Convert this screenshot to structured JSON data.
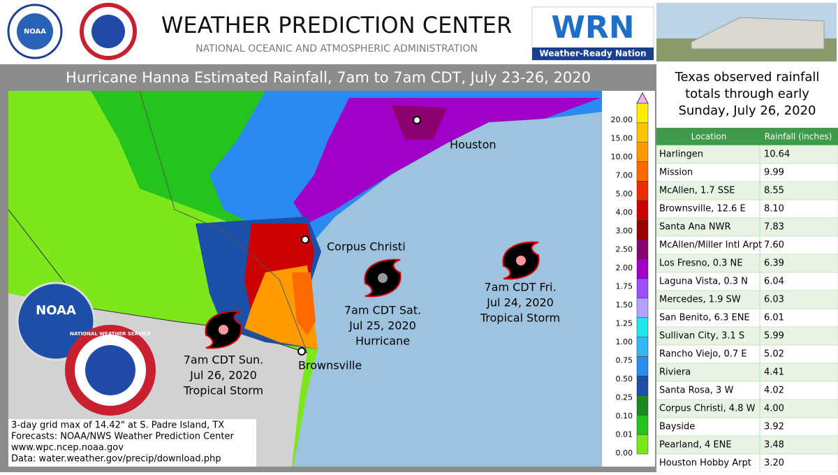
{
  "header": {
    "title": "WEATHER PREDICTION CENTER",
    "subtitle": "NATIONAL OCEANIC AND ATMOSPHERIC ADMINISTRATION",
    "noaa_logo": "NOAA",
    "wrn_logo": "WRN",
    "wrn_tagline": "Weather-Ready Nation"
  },
  "map": {
    "title": "Hurricane Hanna Estimated Rainfall, 7am to 7am CDT, July 23-26, 2020",
    "cities": [
      "Houston",
      "Corpus Christi",
      "Brownsville"
    ],
    "storms": [
      {
        "lines": [
          "7am CDT Fri.",
          "Jul 24, 2020",
          "Tropical Storm"
        ]
      },
      {
        "lines": [
          "7am CDT Sat.",
          "Jul 25, 2020",
          "Hurricane"
        ]
      },
      {
        "lines": [
          "7am CDT Sun.",
          "Jul 26, 2020",
          "Tropical Storm"
        ]
      }
    ],
    "footnote": [
      "3-day grid max of 14.42\" at S. Padre Island, TX",
      "Forecasts: NOAA/NWS Weather Prediction Center",
      "www.wpc.ncep.noaa.gov",
      "Data: water.weather.gov/precip/download.php"
    ],
    "legend": {
      "labels": [
        "20.00",
        "15.00",
        "10.00",
        "7.00",
        "5.00",
        "4.00",
        "3.00",
        "2.50",
        "2.00",
        "1.75",
        "1.50",
        "1.25",
        "1.00",
        "0.75",
        "0.50",
        "0.25",
        "0.10",
        "0.01",
        "0.00"
      ],
      "colors": [
        "#ffee00",
        "#ffc400",
        "#ff9a00",
        "#ff6a00",
        "#ee2a00",
        "#cc0000",
        "#990000",
        "#8b006f",
        "#a000c8",
        "#9a50ff",
        "#b4a0ff",
        "#20e8e8",
        "#30b8f8",
        "#2a8af0",
        "#1c4fa8",
        "#1c8a24",
        "#24c41c",
        "#7ce81a",
        "#ffffff"
      ]
    },
    "logo_noaa": "NOAA",
    "logo_nws": "NATIONAL WEATHER SERVICE"
  },
  "table": {
    "title": [
      "Texas observed rainfall",
      "totals through early",
      "Sunday, July 26, 2020"
    ],
    "headers": [
      "Location",
      "Rainfall (inches)"
    ],
    "rows": [
      [
        "Harlingen",
        "10.64"
      ],
      [
        "Mission",
        "9.99"
      ],
      [
        "McAllen, 1.7 SSE",
        "8.55"
      ],
      [
        "Brownsville, 12.6 E",
        "8.10"
      ],
      [
        "Santa Ana NWR",
        "7.83"
      ],
      [
        "McAllen/Miller Intl Arpt",
        "7.60"
      ],
      [
        "Los Fresno, 0.3 NE",
        "6.39"
      ],
      [
        "Laguna Vista, 0.3 N",
        "6.04"
      ],
      [
        "Mercedes, 1.9 SW",
        "6.03"
      ],
      [
        "San Benito, 6.3 ENE",
        "6.01"
      ],
      [
        "Sullivan City, 3.1 S",
        "5.99"
      ],
      [
        "Rancho Viejo, 0.7 E",
        "5.02"
      ],
      [
        "Riviera",
        "4.41"
      ],
      [
        "Santa Rosa, 3 W",
        "4.02"
      ],
      [
        "Corpus Christi, 4.8 W",
        "4.00"
      ],
      [
        "Bayside",
        "3.92"
      ],
      [
        "Pearland, 4 ENE",
        "3.48"
      ],
      [
        "Houston Hobby Arpt",
        "3.20"
      ]
    ]
  }
}
